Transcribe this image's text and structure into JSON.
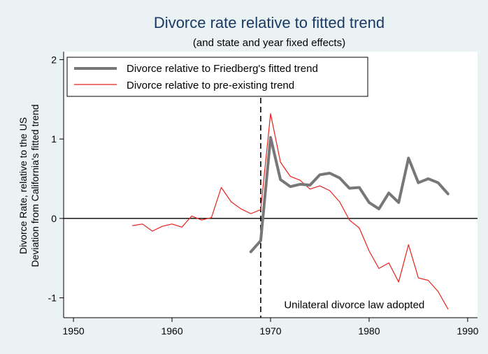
{
  "chart_data": {
    "type": "line",
    "title": "Divorce rate relative to fitted trend",
    "subtitle": "(and state and year fixed effects)",
    "ylabel_lines": [
      "Divorce Rate, relative to the US",
      "Deviation from California's fitted trend"
    ],
    "xlabel": "",
    "xlim": [
      1949,
      1991
    ],
    "ylim": [
      -1.25,
      2.1
    ],
    "x_ticks": [
      1950,
      1960,
      1970,
      1980,
      1990
    ],
    "y_ticks": [
      -1,
      0,
      1,
      2
    ],
    "grid": false,
    "legend_position": "top-left",
    "reference_hline": 0,
    "reference_vline": 1969,
    "annotation": {
      "text": "Unilateral divorce law adopted",
      "x": 1978.5,
      "y": -1.13
    },
    "series": [
      {
        "name": "Divorce relative to Friedberg's fitted trend",
        "color": "#777777",
        "width": "thick",
        "x": [
          1968,
          1969,
          1970,
          1971,
          1972,
          1973,
          1974,
          1975,
          1976,
          1977,
          1978,
          1979,
          1980,
          1981,
          1982,
          1983,
          1984,
          1985,
          1986,
          1987,
          1988
        ],
        "y": [
          -0.42,
          -0.28,
          1.02,
          0.49,
          0.4,
          0.43,
          0.42,
          0.55,
          0.57,
          0.51,
          0.38,
          0.39,
          0.2,
          0.12,
          0.32,
          0.2,
          0.76,
          0.45,
          0.5,
          0.45,
          0.31
        ]
      },
      {
        "name": "Divorce relative to pre-existing trend",
        "color": "#e8201a",
        "width": "thin",
        "x": [
          1956,
          1957,
          1958,
          1959,
          1960,
          1961,
          1962,
          1963,
          1964,
          1965,
          1966,
          1967,
          1968,
          1969,
          1970,
          1971,
          1972,
          1973,
          1974,
          1975,
          1976,
          1977,
          1978,
          1979,
          1980,
          1981,
          1982,
          1983,
          1984,
          1985,
          1986,
          1987,
          1988
        ],
        "y": [
          -0.09,
          -0.07,
          -0.16,
          -0.1,
          -0.07,
          -0.11,
          0.03,
          -0.02,
          0.01,
          0.39,
          0.21,
          0.12,
          0.06,
          0.11,
          1.32,
          0.71,
          0.53,
          0.48,
          0.37,
          0.41,
          0.35,
          0.21,
          -0.02,
          -0.12,
          -0.41,
          -0.63,
          -0.56,
          -0.8,
          -0.33,
          -0.75,
          -0.78,
          -0.92,
          -1.14
        ]
      }
    ]
  }
}
